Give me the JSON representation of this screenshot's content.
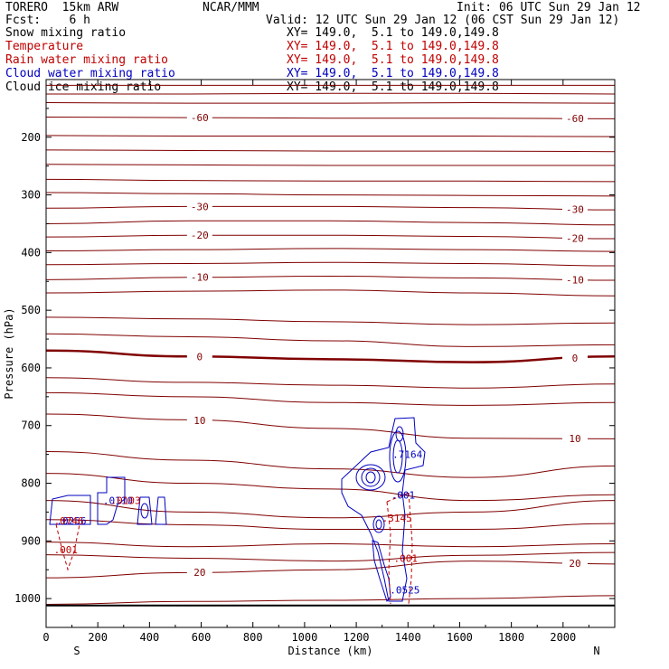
{
  "header": {
    "model": "TORERO  15km ARW",
    "org": "NCAR/MMM",
    "init": "Init: 06 UTC Sun 29 Jan 12",
    "fcst": "Fcst:    6 h",
    "valid": "Valid: 12 UTC Sun 29 Jan 12 (06 CST Sun 29 Jan 12)"
  },
  "fields": [
    {
      "name": "Snow mixing ratio",
      "xy": "XY= 149.0,  5.1 to 149.0,149.8",
      "color": "#000000"
    },
    {
      "name": "Temperature",
      "xy": "XY= 149.0,  5.1 to 149.0,149.8",
      "color": "#c00000"
    },
    {
      "name": "Rain water mixing ratio",
      "xy": "XY= 149.0,  5.1 to 149.0,149.8",
      "color": "#c00000"
    },
    {
      "name": "Cloud water mixing ratio",
      "xy": "XY= 149.0,  5.1 to 149.0,149.8",
      "color": "#0000c0"
    },
    {
      "name": "Cloud ice mixing ratio",
      "xy": "XY= 149.0,  5.1 to 149.0,149.8",
      "color": "#000000"
    }
  ],
  "chart_data": {
    "type": "contour",
    "xlabel": "Distance (km)",
    "ylabel": "Pressure (hPa)",
    "xlim": [
      0,
      2200
    ],
    "ylim": [
      1050,
      100
    ],
    "x_ticks": [
      0,
      200,
      400,
      600,
      800,
      1000,
      1200,
      1400,
      1600,
      1800,
      2000
    ],
    "y_ticks": [
      200,
      300,
      400,
      500,
      600,
      700,
      800,
      900,
      1000
    ],
    "x_end_labels": {
      "left": "S",
      "right": "N"
    },
    "temperature_contours": [
      {
        "p": [
          110,
          110,
          110,
          110,
          110
        ],
        "label": ""
      },
      {
        "p": [
          125,
          125,
          124,
          124,
          125
        ],
        "label": ""
      },
      {
        "p": [
          140,
          141,
          141,
          140,
          141
        ],
        "label": ""
      },
      {
        "p": [
          165,
          166,
          167,
          167,
          168
        ],
        "label": "-60"
      },
      {
        "p": [
          197,
          198,
          198,
          198,
          199
        ],
        "label": ""
      },
      {
        "p": [
          222,
          223,
          224,
          224,
          225
        ],
        "label": ""
      },
      {
        "p": [
          247,
          248,
          249,
          249,
          249
        ],
        "label": ""
      },
      {
        "p": [
          273,
          275,
          276,
          276,
          277
        ],
        "label": ""
      },
      {
        "p": [
          296,
          298,
          300,
          301,
          302
        ],
        "label": ""
      },
      {
        "p": [
          323,
          320,
          320,
          322,
          326
        ],
        "label": "-30"
      },
      {
        "p": [
          350,
          345,
          345,
          348,
          352
        ],
        "label": ""
      },
      {
        "p": [
          373,
          370,
          370,
          372,
          376
        ],
        "label": "-20"
      },
      {
        "p": [
          397,
          395,
          393,
          395,
          398
        ],
        "label": ""
      },
      {
        "p": [
          421,
          419,
          417,
          419,
          423
        ],
        "label": ""
      },
      {
        "p": [
          447,
          443,
          441,
          444,
          448
        ],
        "label": "-10"
      },
      {
        "p": [
          470,
          467,
          465,
          470,
          475
        ],
        "label": ""
      },
      {
        "p": [
          512,
          515,
          520,
          525,
          522
        ],
        "label": ""
      },
      {
        "p": [
          541,
          546,
          553,
          563,
          560
        ],
        "label": ""
      },
      {
        "p": [
          570,
          580,
          585,
          590,
          580
        ],
        "label": "0",
        "bold": true
      },
      {
        "p": [
          617,
          625,
          630,
          635,
          628
        ],
        "label": ""
      },
      {
        "p": [
          643,
          650,
          660,
          665,
          660
        ],
        "label": ""
      },
      {
        "p": [
          680,
          690,
          705,
          722,
          723
        ],
        "label": "10"
      },
      {
        "p": [
          745,
          760,
          775,
          790,
          770
        ],
        "label": ""
      },
      {
        "p": [
          783,
          800,
          810,
          830,
          820
        ],
        "label": ""
      },
      {
        "p": [
          830,
          850,
          860,
          850,
          830
        ],
        "label": ""
      },
      {
        "p": [
          863,
          872,
          880,
          880,
          870
        ],
        "label": ""
      },
      {
        "p": [
          902,
          910,
          905,
          910,
          905
        ],
        "label": ""
      },
      {
        "p": [
          924,
          930,
          935,
          925,
          920
        ],
        "label": ""
      },
      {
        "p": [
          964,
          955,
          950,
          935,
          940
        ],
        "label": "20"
      },
      {
        "p": [
          1010,
          1005,
          1003,
          1000,
          995
        ],
        "label": ""
      }
    ],
    "surface_pressure": 1012,
    "annotations": [
      {
        "text": ".7164",
        "x": 1340,
        "p": 750,
        "color": "#0000c0"
      },
      {
        "text": ".001",
        "x": 1335,
        "p": 820,
        "color": "#0000c0"
      },
      {
        "text": ".3145",
        "x": 1300,
        "p": 860,
        "color": "#c00000"
      },
      {
        "text": ".001",
        "x": 1345,
        "p": 930,
        "color": "#c00000"
      },
      {
        "text": ".0525",
        "x": 1330,
        "p": 985,
        "color": "#0000c0"
      },
      {
        "text": ".0110",
        "x": 220,
        "p": 830,
        "color": "#0000c0"
      },
      {
        "text": ".0103",
        "x": 250,
        "p": 830,
        "color": "#c00000"
      },
      {
        "text": ".0256",
        "x": 40,
        "p": 865,
        "color": "#0000c0"
      },
      {
        "text": ".0746",
        "x": 30,
        "p": 865,
        "color": "#c00000"
      },
      {
        "text": ".001",
        "x": 30,
        "p": 915,
        "color": "#c00000"
      }
    ]
  }
}
